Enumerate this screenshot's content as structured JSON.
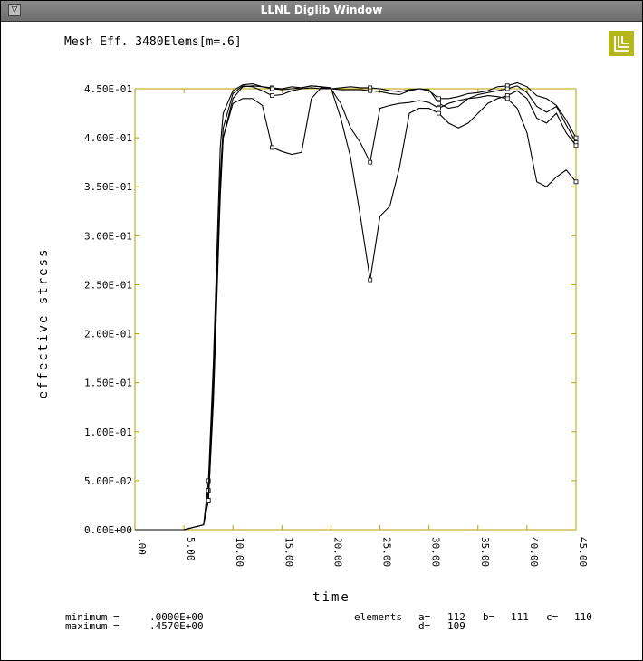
{
  "window": {
    "title": "LLNL Diglib Window",
    "menu_glyph": "▽"
  },
  "logo": {
    "glyph": "LLNL",
    "color": "#b5b51c"
  },
  "chart_data": {
    "type": "line",
    "title": "Mesh Eff. 3480Elems[m=.6]",
    "xlabel": "time",
    "ylabel": "effective stress",
    "xlim": [
      0,
      45
    ],
    "ylim": [
      0,
      0.45
    ],
    "xticks": [
      0,
      5,
      10,
      15,
      20,
      25,
      30,
      35,
      40,
      45
    ],
    "xtick_labels": [
      ".00",
      "5.00",
      "10.00",
      "15.00",
      "20.00",
      "25.00",
      "30.00",
      "35.00",
      "40.00",
      "45.00"
    ],
    "yticks": [
      0,
      0.05,
      0.1,
      0.15,
      0.2,
      0.25,
      0.3,
      0.35,
      0.4,
      0.45
    ],
    "ytick_labels": [
      "0.00E+00",
      "5.00E-02",
      "1.00E-01",
      "1.50E-01",
      "2.00E-01",
      "2.50E-01",
      "3.00E-01",
      "3.50E-01",
      "4.00E-01",
      "4.50E-01"
    ],
    "frame_color": "#b8a200",
    "line_color": "#000000",
    "series": [
      {
        "marker": "a",
        "x": [
          0,
          5,
          7,
          7.5,
          8,
          8.7,
          9,
          10,
          11,
          12,
          13,
          14,
          15,
          16,
          17,
          18,
          19,
          20,
          21,
          22,
          23,
          24,
          25,
          26,
          27,
          28,
          29,
          30,
          31,
          32,
          33,
          34,
          35,
          36,
          37,
          38,
          39,
          40,
          41,
          42,
          43,
          44,
          45
        ],
        "y": [
          0,
          0,
          0.005,
          0.05,
          0.17,
          0.39,
          0.425,
          0.448,
          0.454,
          0.455,
          0.452,
          0.451,
          0.45,
          0.452,
          0.451,
          0.453,
          0.452,
          0.45,
          0.451,
          0.452,
          0.451,
          0.451,
          0.45,
          0.448,
          0.447,
          0.449,
          0.45,
          0.448,
          0.44,
          0.44,
          0.442,
          0.445,
          0.446,
          0.448,
          0.452,
          0.453,
          0.456,
          0.452,
          0.443,
          0.44,
          0.433,
          0.418,
          0.4
        ]
      },
      {
        "marker": "b",
        "x": [
          0,
          5,
          7,
          7.5,
          8,
          8.7,
          9,
          10,
          11,
          12,
          13,
          14,
          15,
          16,
          17,
          18,
          19,
          20,
          21,
          22,
          23,
          24,
          25,
          26,
          27,
          28,
          29,
          30,
          31,
          32,
          33,
          34,
          35,
          36,
          37,
          38,
          39,
          40,
          41,
          42,
          43,
          44,
          45
        ],
        "y": [
          0,
          0,
          0.005,
          0.04,
          0.15,
          0.36,
          0.41,
          0.445,
          0.453,
          0.452,
          0.448,
          0.443,
          0.444,
          0.448,
          0.45,
          0.451,
          0.45,
          0.45,
          0.449,
          0.449,
          0.449,
          0.448,
          0.447,
          0.445,
          0.444,
          0.448,
          0.45,
          0.449,
          0.435,
          0.43,
          0.432,
          0.44,
          0.444,
          0.446,
          0.448,
          0.45,
          0.453,
          0.446,
          0.432,
          0.426,
          0.432,
          0.413,
          0.395
        ]
      },
      {
        "marker": "c",
        "x": [
          0,
          5,
          7,
          7.5,
          8,
          8.7,
          9,
          10,
          11,
          12,
          13,
          14,
          15,
          16,
          17,
          18,
          19,
          20,
          21,
          22,
          23,
          24,
          25,
          26,
          27,
          28,
          29,
          30,
          31,
          32,
          33,
          34,
          35,
          36,
          37,
          38,
          39,
          40,
          41,
          42,
          43,
          44,
          45
        ],
        "y": [
          0,
          0,
          0.005,
          0.03,
          0.14,
          0.35,
          0.4,
          0.44,
          0.452,
          0.453,
          0.452,
          0.45,
          0.449,
          0.45,
          0.451,
          0.453,
          0.452,
          0.451,
          0.42,
          0.38,
          0.32,
          0.255,
          0.32,
          0.33,
          0.37,
          0.425,
          0.43,
          0.43,
          0.425,
          0.415,
          0.41,
          0.415,
          0.425,
          0.435,
          0.44,
          0.443,
          0.448,
          0.44,
          0.42,
          0.415,
          0.425,
          0.405,
          0.392
        ]
      },
      {
        "marker": "d",
        "x": [
          0,
          5,
          7,
          7.5,
          8,
          8.7,
          9,
          10,
          11,
          12,
          13,
          14,
          15,
          16,
          17,
          18,
          19,
          20,
          21,
          22,
          23,
          24,
          25,
          26,
          27,
          28,
          29,
          30,
          31,
          32,
          33,
          34,
          35,
          36,
          37,
          38,
          39,
          40,
          41,
          42,
          43,
          44,
          45
        ],
        "y": [
          0,
          0,
          0.005,
          0.03,
          0.13,
          0.34,
          0.4,
          0.435,
          0.44,
          0.44,
          0.433,
          0.39,
          0.386,
          0.383,
          0.385,
          0.44,
          0.451,
          0.45,
          0.435,
          0.41,
          0.395,
          0.375,
          0.43,
          0.433,
          0.435,
          0.436,
          0.438,
          0.436,
          0.43,
          0.435,
          0.438,
          0.44,
          0.441,
          0.443,
          0.442,
          0.44,
          0.43,
          0.405,
          0.355,
          0.35,
          0.36,
          0.367,
          0.355
        ]
      }
    ]
  },
  "footer": {
    "min_label": "minimum =",
    "min_value": ".0000E+00",
    "max_label": "maximum =",
    "max_value": ".4570E+00",
    "elements_label": "elements",
    "a_label": "a=",
    "a_value": "112",
    "b_label": "b=",
    "b_value": "111",
    "c_label": "c=",
    "c_value": "110",
    "d_label": "d=",
    "d_value": "109"
  }
}
